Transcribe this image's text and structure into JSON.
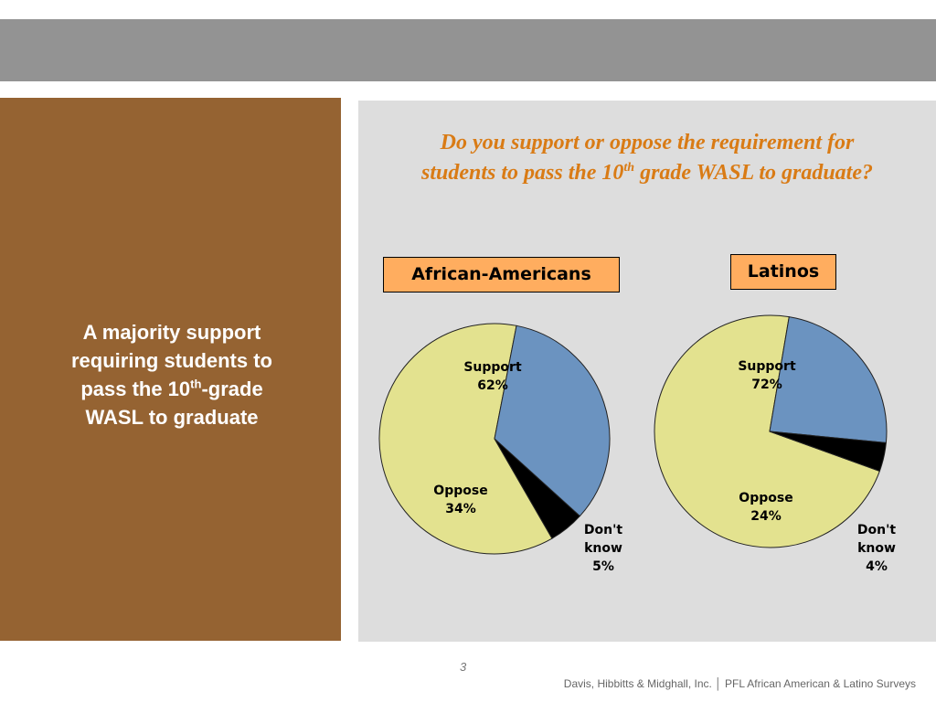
{
  "slide": {
    "left_text": {
      "line1": "A majority support",
      "line2": "requiring students to",
      "line3_pre": "pass the 10",
      "line3_sup": "th",
      "line3_post": "-grade",
      "line4": "WASL to graduate"
    },
    "question": {
      "line1": "Do you support or oppose the requirement for",
      "line2_pre": "students to pass the 10",
      "line2_sup": "th",
      "line2_post": " grade WASL to graduate?"
    },
    "page_number": "3",
    "footer": "Davis, Hibbitts & Midghall, Inc. │ PFL African American  & Latino Surveys"
  },
  "colors": {
    "top_bar": "#939393",
    "left_panel": "#956332",
    "right_panel": "#dddddd",
    "question_text": "#d97b15",
    "group_label_bg": "#ffad5f",
    "support": "#e3e28f",
    "oppose": "#6b93c0",
    "dont_know": "#000000"
  },
  "chart_data": [
    {
      "type": "pie",
      "title": "African-Americans",
      "labels": [
        "Support",
        "Oppose",
        "Don't know"
      ],
      "values": [
        62,
        34,
        5
      ],
      "value_labels": [
        "62%",
        "34%",
        "5%"
      ]
    },
    {
      "type": "pie",
      "title": "Latinos",
      "labels": [
        "Support",
        "Oppose",
        "Don't know"
      ],
      "values": [
        72,
        24,
        4
      ],
      "value_labels": [
        "72%",
        "24%",
        "4%"
      ]
    }
  ]
}
